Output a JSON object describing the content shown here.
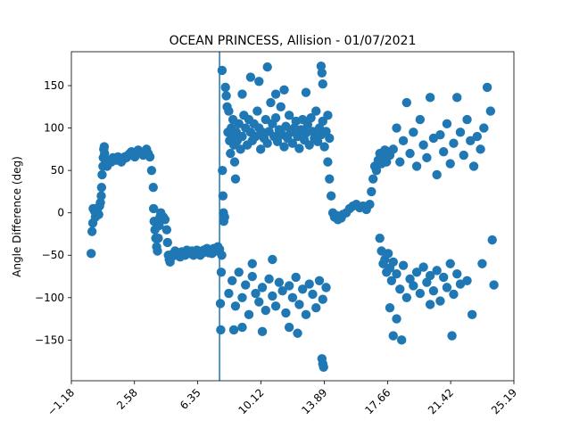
{
  "chart_data": {
    "type": "scatter",
    "title": "OCEAN PRINCESS, Allision - 01/07/2021",
    "xlabel": "",
    "ylabel": "Angle Difference (deg)",
    "xlim": [
      -1.18,
      25.19
    ],
    "ylim": [
      -198,
      190
    ],
    "xticks": [
      -1.18,
      2.58,
      6.35,
      10.12,
      13.89,
      17.66,
      21.42,
      25.19
    ],
    "xtick_labels": [
      "−1.18",
      "2.58",
      "6.35",
      "10.12",
      "13.89",
      "17.66",
      "21.42",
      "25.19"
    ],
    "xtick_rotation": 45,
    "yticks": [
      -150,
      -100,
      -50,
      0,
      50,
      100,
      150
    ],
    "ytick_labels": [
      "−150",
      "−100",
      "−50",
      "0",
      "50",
      "100",
      "150"
    ],
    "vline_x": 7.65,
    "marker_color": "#1f77b4",
    "grid": false,
    "points": [
      [
        0.0,
        -48
      ],
      [
        0.05,
        -22
      ],
      [
        0.1,
        -12
      ],
      [
        0.12,
        5
      ],
      [
        0.2,
        2
      ],
      [
        0.25,
        -5
      ],
      [
        0.3,
        0
      ],
      [
        0.35,
        3
      ],
      [
        0.4,
        6
      ],
      [
        0.45,
        -2
      ],
      [
        0.5,
        8
      ],
      [
        0.55,
        12
      ],
      [
        0.6,
        20
      ],
      [
        0.62,
        30
      ],
      [
        0.65,
        45
      ],
      [
        0.7,
        55
      ],
      [
        0.72,
        65
      ],
      [
        0.75,
        75
      ],
      [
        0.78,
        78
      ],
      [
        0.8,
        70
      ],
      [
        0.85,
        62
      ],
      [
        0.9,
        58
      ],
      [
        0.95,
        55
      ],
      [
        1.0,
        60
      ],
      [
        1.1,
        62
      ],
      [
        1.2,
        60
      ],
      [
        1.3,
        65
      ],
      [
        1.4,
        63
      ],
      [
        1.5,
        62
      ],
      [
        1.6,
        66
      ],
      [
        1.7,
        64
      ],
      [
        1.8,
        60
      ],
      [
        1.9,
        63
      ],
      [
        2.0,
        66
      ],
      [
        2.1,
        65
      ],
      [
        2.2,
        68
      ],
      [
        2.3,
        70
      ],
      [
        2.4,
        72
      ],
      [
        2.5,
        68
      ],
      [
        2.6,
        66
      ],
      [
        2.7,
        70
      ],
      [
        2.8,
        74
      ],
      [
        2.9,
        72
      ],
      [
        3.0,
        70
      ],
      [
        3.1,
        68
      ],
      [
        3.2,
        72
      ],
      [
        3.3,
        75
      ],
      [
        3.4,
        70
      ],
      [
        3.5,
        66
      ],
      [
        3.6,
        50
      ],
      [
        3.7,
        30
      ],
      [
        3.72,
        5
      ],
      [
        3.75,
        -10
      ],
      [
        3.8,
        -20
      ],
      [
        3.85,
        -30
      ],
      [
        3.9,
        -40
      ],
      [
        3.95,
        -45
      ],
      [
        4.0,
        -30
      ],
      [
        4.05,
        -15
      ],
      [
        4.1,
        -5
      ],
      [
        4.15,
        0
      ],
      [
        4.2,
        -3
      ],
      [
        4.3,
        -5
      ],
      [
        4.4,
        -8
      ],
      [
        4.5,
        -20
      ],
      [
        4.55,
        -35
      ],
      [
        4.6,
        -50
      ],
      [
        4.65,
        -55
      ],
      [
        4.7,
        -58
      ],
      [
        4.8,
        -52
      ],
      [
        4.9,
        -48
      ],
      [
        5.0,
        -45
      ],
      [
        5.1,
        -50
      ],
      [
        5.2,
        -47
      ],
      [
        5.3,
        -52
      ],
      [
        5.4,
        -46
      ],
      [
        5.5,
        -48
      ],
      [
        5.6,
        -50
      ],
      [
        5.7,
        -44
      ],
      [
        5.8,
        -46
      ],
      [
        5.9,
        -48
      ],
      [
        6.0,
        -45
      ],
      [
        6.1,
        -50
      ],
      [
        6.2,
        -48
      ],
      [
        6.3,
        -44
      ],
      [
        6.4,
        -46
      ],
      [
        6.5,
        -50
      ],
      [
        6.6,
        -48
      ],
      [
        6.7,
        -44
      ],
      [
        6.8,
        -46
      ],
      [
        6.9,
        -42
      ],
      [
        7.0,
        -47
      ],
      [
        7.1,
        -45
      ],
      [
        7.2,
        -48
      ],
      [
        7.3,
        -42
      ],
      [
        7.4,
        -45
      ],
      [
        7.5,
        -44
      ],
      [
        7.55,
        -40
      ],
      [
        7.6,
        -45
      ],
      [
        7.65,
        -43
      ],
      [
        7.7,
        -107
      ],
      [
        7.72,
        -138
      ],
      [
        7.75,
        -70
      ],
      [
        7.78,
        -50
      ],
      [
        7.8,
        168
      ],
      [
        7.82,
        50
      ],
      [
        7.85,
        20
      ],
      [
        7.88,
        0
      ],
      [
        7.9,
        -10
      ],
      [
        7.95,
        -5
      ],
      [
        8.0,
        148
      ],
      [
        8.05,
        138
      ],
      [
        8.1,
        125
      ],
      [
        8.15,
        95
      ],
      [
        8.2,
        120
      ],
      [
        8.25,
        85
      ],
      [
        8.3,
        70
      ],
      [
        8.35,
        100
      ],
      [
        8.4,
        90
      ],
      [
        8.45,
        110
      ],
      [
        8.5,
        80
      ],
      [
        8.55,
        60
      ],
      [
        8.6,
        40
      ],
      [
        8.65,
        95
      ],
      [
        8.7,
        85
      ],
      [
        8.8,
        105
      ],
      [
        8.9,
        75
      ],
      [
        9.0,
        90
      ],
      [
        9.1,
        115
      ],
      [
        9.2,
        100
      ],
      [
        9.3,
        80
      ],
      [
        9.4,
        110
      ],
      [
        9.5,
        95
      ],
      [
        9.6,
        85
      ],
      [
        9.7,
        105
      ],
      [
        9.8,
        90
      ],
      [
        9.9,
        120
      ],
      [
        10.0,
        100
      ],
      [
        10.1,
        75
      ],
      [
        10.2,
        95
      ],
      [
        10.3,
        88
      ],
      [
        10.4,
        110
      ],
      [
        10.5,
        82
      ],
      [
        10.6,
        96
      ],
      [
        10.7,
        130
      ],
      [
        10.8,
        105
      ],
      [
        10.9,
        90
      ],
      [
        11.0,
        112
      ],
      [
        11.1,
        84
      ],
      [
        11.2,
        98
      ],
      [
        11.3,
        125
      ],
      [
        11.4,
        92
      ],
      [
        11.5,
        78
      ],
      [
        11.6,
        102
      ],
      [
        11.7,
        88
      ],
      [
        11.8,
        115
      ],
      [
        11.9,
        95
      ],
      [
        12.0,
        82
      ],
      [
        12.1,
        100
      ],
      [
        12.2,
        108
      ],
      [
        12.3,
        90
      ],
      [
        12.4,
        76
      ],
      [
        12.5,
        98
      ],
      [
        12.6,
        110
      ],
      [
        12.7,
        86
      ],
      [
        12.8,
        94
      ],
      [
        12.9,
        104
      ],
      [
        13.0,
        80
      ],
      [
        13.1,
        112
      ],
      [
        13.2,
        96
      ],
      [
        13.3,
        88
      ],
      [
        13.4,
        120
      ],
      [
        13.5,
        84
      ],
      [
        13.6,
        100
      ],
      [
        13.7,
        92
      ],
      [
        13.8,
        108
      ],
      [
        13.9,
        78
      ],
      [
        14.0,
        96
      ],
      [
        14.1,
        115
      ],
      [
        14.2,
        88
      ],
      [
        10.5,
        172
      ],
      [
        9.5,
        160
      ],
      [
        10.0,
        155
      ],
      [
        11.5,
        145
      ],
      [
        12.8,
        142
      ],
      [
        13.7,
        173
      ],
      [
        13.75,
        165
      ],
      [
        13.8,
        152
      ],
      [
        9.0,
        140
      ],
      [
        11.0,
        140
      ],
      [
        8.2,
        -95
      ],
      [
        8.4,
        -80
      ],
      [
        8.6,
        -110
      ],
      [
        8.8,
        -70
      ],
      [
        9.0,
        -100
      ],
      [
        9.2,
        -85
      ],
      [
        9.4,
        -120
      ],
      [
        9.6,
        -75
      ],
      [
        9.8,
        -95
      ],
      [
        10.0,
        -105
      ],
      [
        10.2,
        -88
      ],
      [
        10.4,
        -115
      ],
      [
        10.6,
        -78
      ],
      [
        10.8,
        -98
      ],
      [
        11.0,
        -110
      ],
      [
        11.2,
        -82
      ],
      [
        11.4,
        -92
      ],
      [
        11.6,
        -118
      ],
      [
        11.8,
        -86
      ],
      [
        12.0,
        -100
      ],
      [
        12.2,
        -76
      ],
      [
        12.4,
        -108
      ],
      [
        12.6,
        -90
      ],
      [
        12.8,
        -120
      ],
      [
        13.0,
        -84
      ],
      [
        13.2,
        -96
      ],
      [
        13.4,
        -112
      ],
      [
        13.6,
        -80
      ],
      [
        13.8,
        -102
      ],
      [
        14.0,
        -88
      ],
      [
        8.5,
        -138
      ],
      [
        9.0,
        -135
      ],
      [
        10.2,
        -140
      ],
      [
        11.8,
        -135
      ],
      [
        12.3,
        -142
      ],
      [
        13.75,
        -172
      ],
      [
        13.8,
        -178
      ],
      [
        13.85,
        -182
      ],
      [
        9.6,
        -60
      ],
      [
        10.8,
        -55
      ],
      [
        14.1,
        60
      ],
      [
        14.2,
        40
      ],
      [
        14.3,
        20
      ],
      [
        14.4,
        0
      ],
      [
        14.5,
        -5
      ],
      [
        14.6,
        -3
      ],
      [
        14.7,
        -8
      ],
      [
        14.8,
        -4
      ],
      [
        14.9,
        -6
      ],
      [
        15.0,
        -2
      ],
      [
        15.2,
        0
      ],
      [
        15.4,
        5
      ],
      [
        15.6,
        8
      ],
      [
        15.8,
        10
      ],
      [
        16.0,
        6
      ],
      [
        16.2,
        8
      ],
      [
        16.4,
        4
      ],
      [
        16.6,
        10
      ],
      [
        16.7,
        25
      ],
      [
        16.8,
        40
      ],
      [
        16.9,
        55
      ],
      [
        17.0,
        50
      ],
      [
        17.1,
        62
      ],
      [
        17.2,
        70
      ],
      [
        17.3,
        58
      ],
      [
        17.4,
        66
      ],
      [
        17.5,
        74
      ],
      [
        17.6,
        60
      ],
      [
        17.7,
        72
      ],
      [
        17.8,
        68
      ],
      [
        17.2,
        -30
      ],
      [
        17.3,
        -45
      ],
      [
        17.4,
        -60
      ],
      [
        17.5,
        -55
      ],
      [
        17.6,
        -70
      ],
      [
        17.7,
        -48
      ],
      [
        17.8,
        -65
      ],
      [
        17.9,
        -80
      ],
      [
        18.0,
        -58
      ],
      [
        18.2,
        -72
      ],
      [
        18.4,
        -90
      ],
      [
        18.6,
        -62
      ],
      [
        18.8,
        -100
      ],
      [
        19.0,
        -78
      ],
      [
        19.2,
        -86
      ],
      [
        19.4,
        -70
      ],
      [
        19.6,
        -95
      ],
      [
        19.8,
        -64
      ],
      [
        20.0,
        -82
      ],
      [
        20.2,
        -74
      ],
      [
        20.4,
        -92
      ],
      [
        20.6,
        -68
      ],
      [
        20.8,
        -104
      ],
      [
        21.0,
        -76
      ],
      [
        21.2,
        -88
      ],
      [
        21.4,
        -60
      ],
      [
        21.6,
        -96
      ],
      [
        21.8,
        -72
      ],
      [
        22.0,
        -84
      ],
      [
        22.4,
        -80
      ],
      [
        18.0,
        75
      ],
      [
        18.2,
        100
      ],
      [
        18.4,
        60
      ],
      [
        18.6,
        85
      ],
      [
        18.8,
        130
      ],
      [
        19.0,
        70
      ],
      [
        19.2,
        95
      ],
      [
        19.4,
        55
      ],
      [
        19.6,
        110
      ],
      [
        19.8,
        80
      ],
      [
        20.0,
        65
      ],
      [
        20.2,
        136
      ],
      [
        20.4,
        88
      ],
      [
        20.6,
        45
      ],
      [
        20.8,
        92
      ],
      [
        21.0,
        72
      ],
      [
        21.2,
        105
      ],
      [
        21.4,
        58
      ],
      [
        21.6,
        82
      ],
      [
        21.8,
        136
      ],
      [
        22.0,
        95
      ],
      [
        22.2,
        68
      ],
      [
        22.4,
        110
      ],
      [
        22.6,
        85
      ],
      [
        22.8,
        55
      ],
      [
        23.0,
        90
      ],
      [
        23.2,
        75
      ],
      [
        23.4,
        100
      ],
      [
        23.6,
        148
      ],
      [
        23.8,
        120
      ],
      [
        17.8,
        -112
      ],
      [
        18.0,
        -145
      ],
      [
        18.2,
        -125
      ],
      [
        18.5,
        -150
      ],
      [
        20.2,
        -108
      ],
      [
        21.5,
        -145
      ],
      [
        22.7,
        -120
      ],
      [
        23.3,
        -60
      ],
      [
        23.9,
        -32
      ],
      [
        24.0,
        -85
      ]
    ]
  }
}
